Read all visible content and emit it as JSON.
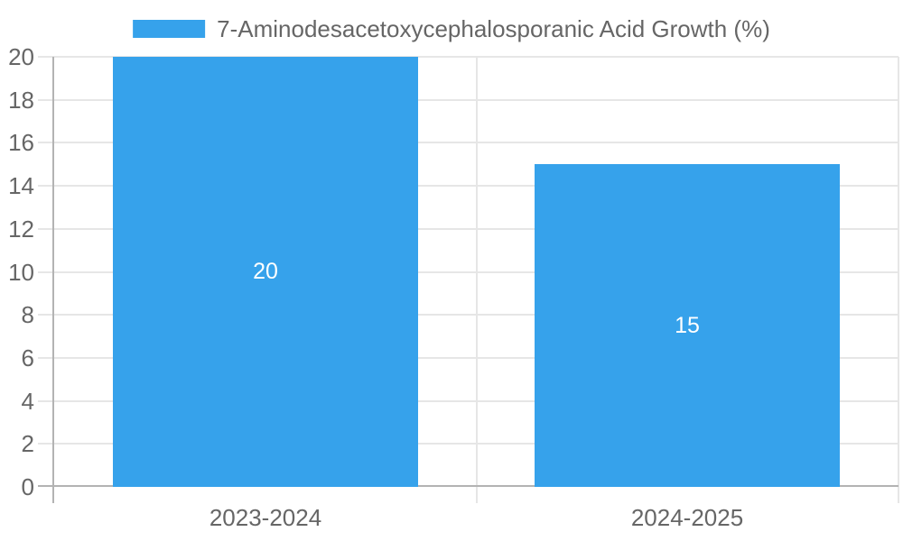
{
  "chart_data": {
    "type": "bar",
    "title": "7-Aminodesacetoxycephalosporanic Acid Growth (%)",
    "categories": [
      "2023-2024",
      "2024-2025"
    ],
    "series": [
      {
        "name": "7-Aminodesacetoxycephalosporanic Acid Growth (%)",
        "values": [
          20,
          15
        ]
      }
    ],
    "data_labels": [
      "20",
      "15"
    ],
    "xlabel": "",
    "ylabel": "",
    "ylim": [
      0,
      20
    ],
    "yticks": [
      0,
      2,
      4,
      6,
      8,
      10,
      12,
      14,
      16,
      18,
      20
    ],
    "grid": true,
    "legend_position": "top",
    "colors": {
      "bar": "#36A2EB",
      "text": "#666666",
      "grid_line": "#e6e6e6",
      "axis_line": "#b3b3b3",
      "data_label": "#ffffff",
      "background": "#ffffff"
    }
  }
}
